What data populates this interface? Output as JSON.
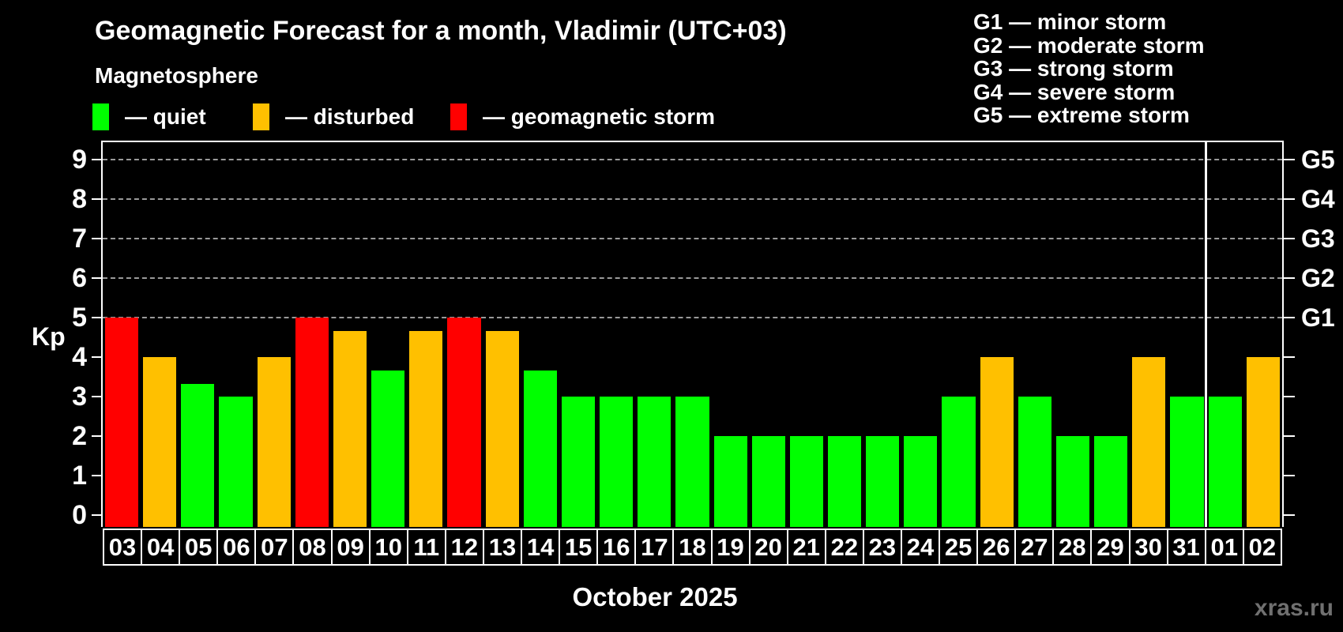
{
  "header": {
    "title": "Geomagnetic Forecast for a month, Vladimir (UTC+03)",
    "subtitle": "Magnetosphere"
  },
  "legend": {
    "items": [
      {
        "name": "quiet",
        "label": "— quiet",
        "color": "#00ff00"
      },
      {
        "name": "disturbed",
        "label": "— disturbed",
        "color": "#ffc000"
      },
      {
        "name": "storm",
        "label": "— geomagnetic storm",
        "color": "#ff0000"
      }
    ]
  },
  "storm_scale_legend": {
    "items": [
      "G1 — minor storm",
      "G2 — moderate storm",
      "G3 — strong storm",
      "G4 — severe storm",
      "G5 — extreme storm"
    ]
  },
  "chart_data": {
    "type": "bar",
    "title": "Geomagnetic Forecast for a month, Vladimir (UTC+03)",
    "ylabel": "Kp",
    "xlabel": "October 2025",
    "ylim": [
      0,
      9.4
    ],
    "yticks": [
      0,
      1,
      2,
      3,
      4,
      5,
      6,
      7,
      8,
      9
    ],
    "gridlines_at": [
      5,
      6,
      7,
      8,
      9
    ],
    "grid": "dashed horizontal lines at Kp 5-9 only",
    "legend_position": "top-left",
    "right_axis": [
      {
        "kp": 5,
        "label": "G1"
      },
      {
        "kp": 6,
        "label": "G2"
      },
      {
        "kp": 7,
        "label": "G3"
      },
      {
        "kp": 8,
        "label": "G4"
      },
      {
        "kp": 9,
        "label": "G5"
      }
    ],
    "categories": [
      "03",
      "04",
      "05",
      "06",
      "07",
      "08",
      "09",
      "10",
      "11",
      "12",
      "13",
      "14",
      "15",
      "16",
      "17",
      "18",
      "19",
      "20",
      "21",
      "22",
      "23",
      "24",
      "25",
      "26",
      "27",
      "28",
      "29",
      "30",
      "31",
      "01",
      "02"
    ],
    "values": [
      5,
      4,
      3.33,
      3,
      4,
      5,
      4.67,
      3.67,
      4.67,
      5,
      4.67,
      3.67,
      3,
      3,
      3,
      3,
      2,
      2,
      2,
      2,
      2,
      2,
      3,
      4,
      3,
      2,
      2,
      4,
      3,
      3,
      4
    ],
    "statuses": [
      "storm",
      "disturbed",
      "quiet",
      "quiet",
      "disturbed",
      "storm",
      "disturbed",
      "quiet",
      "disturbed",
      "storm",
      "disturbed",
      "quiet",
      "quiet",
      "quiet",
      "quiet",
      "quiet",
      "quiet",
      "quiet",
      "quiet",
      "quiet",
      "quiet",
      "quiet",
      "quiet",
      "disturbed",
      "quiet",
      "quiet",
      "quiet",
      "disturbed",
      "quiet",
      "quiet",
      "disturbed"
    ],
    "status_colors": {
      "quiet": "#00ff00",
      "disturbed": "#ffc000",
      "storm": "#ff0000"
    },
    "month_separator_after_index": 28
  },
  "footer": {
    "month_label": "October 2025",
    "watermark": "xras.ru"
  }
}
